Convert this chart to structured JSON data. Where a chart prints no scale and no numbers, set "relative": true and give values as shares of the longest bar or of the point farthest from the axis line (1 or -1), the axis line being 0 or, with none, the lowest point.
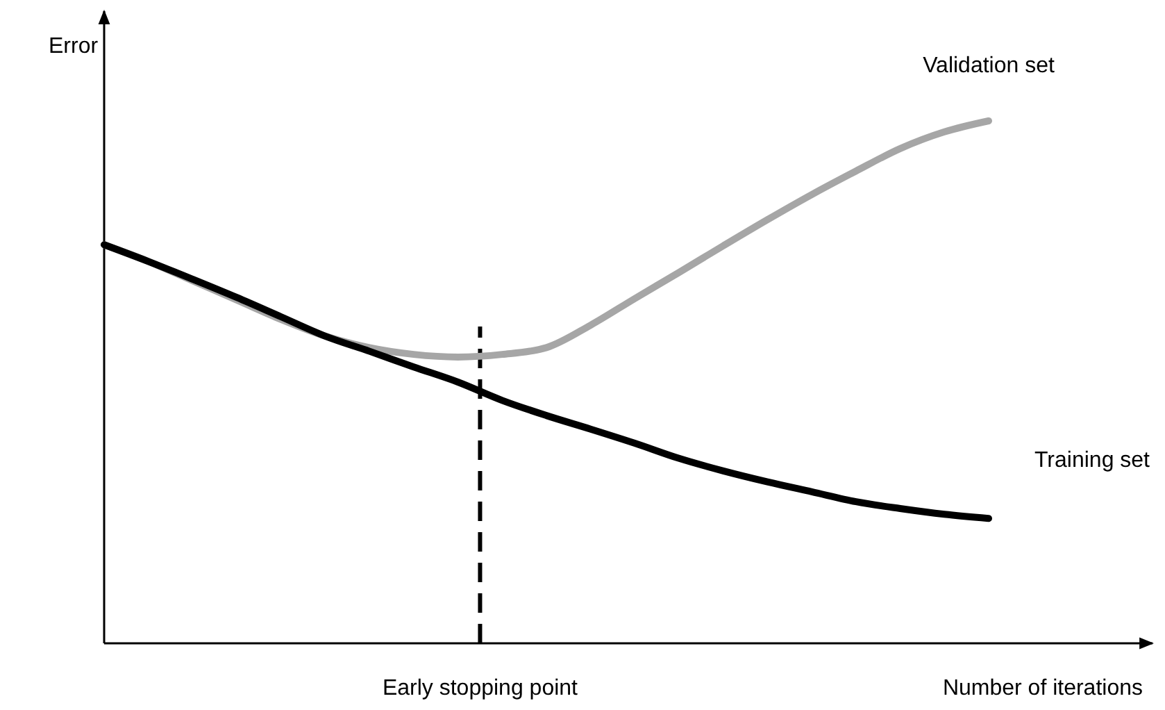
{
  "chart_data": {
    "type": "line",
    "relative": true,
    "ylabel": "Error",
    "xlabel": "Number of iterations",
    "line_style": "solid",
    "marker": "none",
    "categories": [
      null,
      null,
      null,
      null,
      null,
      null,
      null,
      null,
      null,
      null,
      null,
      null,
      null,
      null,
      null,
      null,
      null,
      null,
      null,
      null,
      null
    ],
    "series": [
      {
        "name": "Validation set",
        "color": "#a6a6a6",
        "values": [
          0.763,
          0.731,
          0.694,
          0.657,
          0.62,
          0.588,
          0.566,
          0.553,
          0.548,
          0.553,
          0.566,
          0.609,
          0.66,
          0.71,
          0.761,
          0.811,
          0.859,
          0.904,
          0.947,
          0.979,
          1.0
        ]
      },
      {
        "name": "Training set",
        "color": "#000000",
        "values": [
          0.763,
          0.731,
          0.697,
          0.662,
          0.625,
          0.588,
          0.559,
          0.529,
          0.5,
          0.465,
          0.436,
          0.41,
          0.383,
          0.354,
          0.33,
          0.309,
          0.29,
          0.271,
          0.258,
          0.247,
          0.239
        ]
      }
    ],
    "annotations": [
      "Early stopping point"
    ]
  }
}
